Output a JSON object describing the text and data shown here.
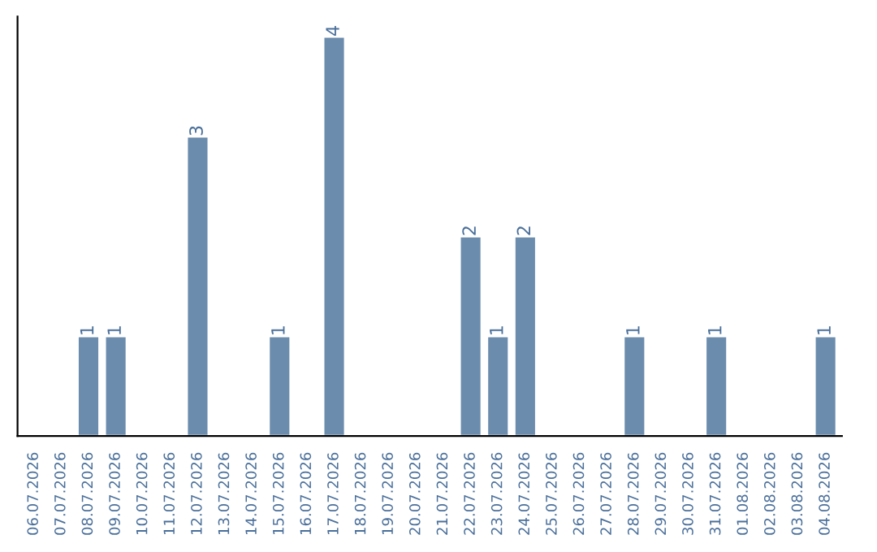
{
  "chart_data": {
    "type": "bar",
    "categories": [
      "06.07.2026",
      "07.07.2026",
      "08.07.2026",
      "09.07.2026",
      "10.07.2026",
      "11.07.2026",
      "12.07.2026",
      "13.07.2026",
      "14.07.2026",
      "15.07.2026",
      "16.07.2026",
      "17.07.2026",
      "18.07.2026",
      "19.07.2026",
      "20.07.2026",
      "21.07.2026",
      "22.07.2026",
      "23.07.2026",
      "24.07.2026",
      "25.07.2026",
      "26.07.2026",
      "27.07.2026",
      "28.07.2026",
      "29.07.2026",
      "30.07.2026",
      "31.07.2026",
      "01.08.2026",
      "02.08.2026",
      "03.08.2026",
      "04.08.2026"
    ],
    "values": [
      0,
      0,
      1,
      1,
      0,
      0,
      3,
      0,
      0,
      1,
      0,
      4,
      0,
      0,
      0,
      0,
      2,
      1,
      2,
      0,
      0,
      0,
      1,
      0,
      0,
      1,
      0,
      0,
      0,
      1
    ],
    "value_labels": [
      null,
      null,
      "1",
      "1",
      null,
      null,
      "3",
      null,
      null,
      "1",
      null,
      "4",
      null,
      null,
      null,
      null,
      "2",
      "1",
      "2",
      null,
      null,
      null,
      "1",
      null,
      null,
      "1",
      null,
      null,
      null,
      "1"
    ],
    "color": "#6b8cad",
    "tick_labels": "x"
  }
}
